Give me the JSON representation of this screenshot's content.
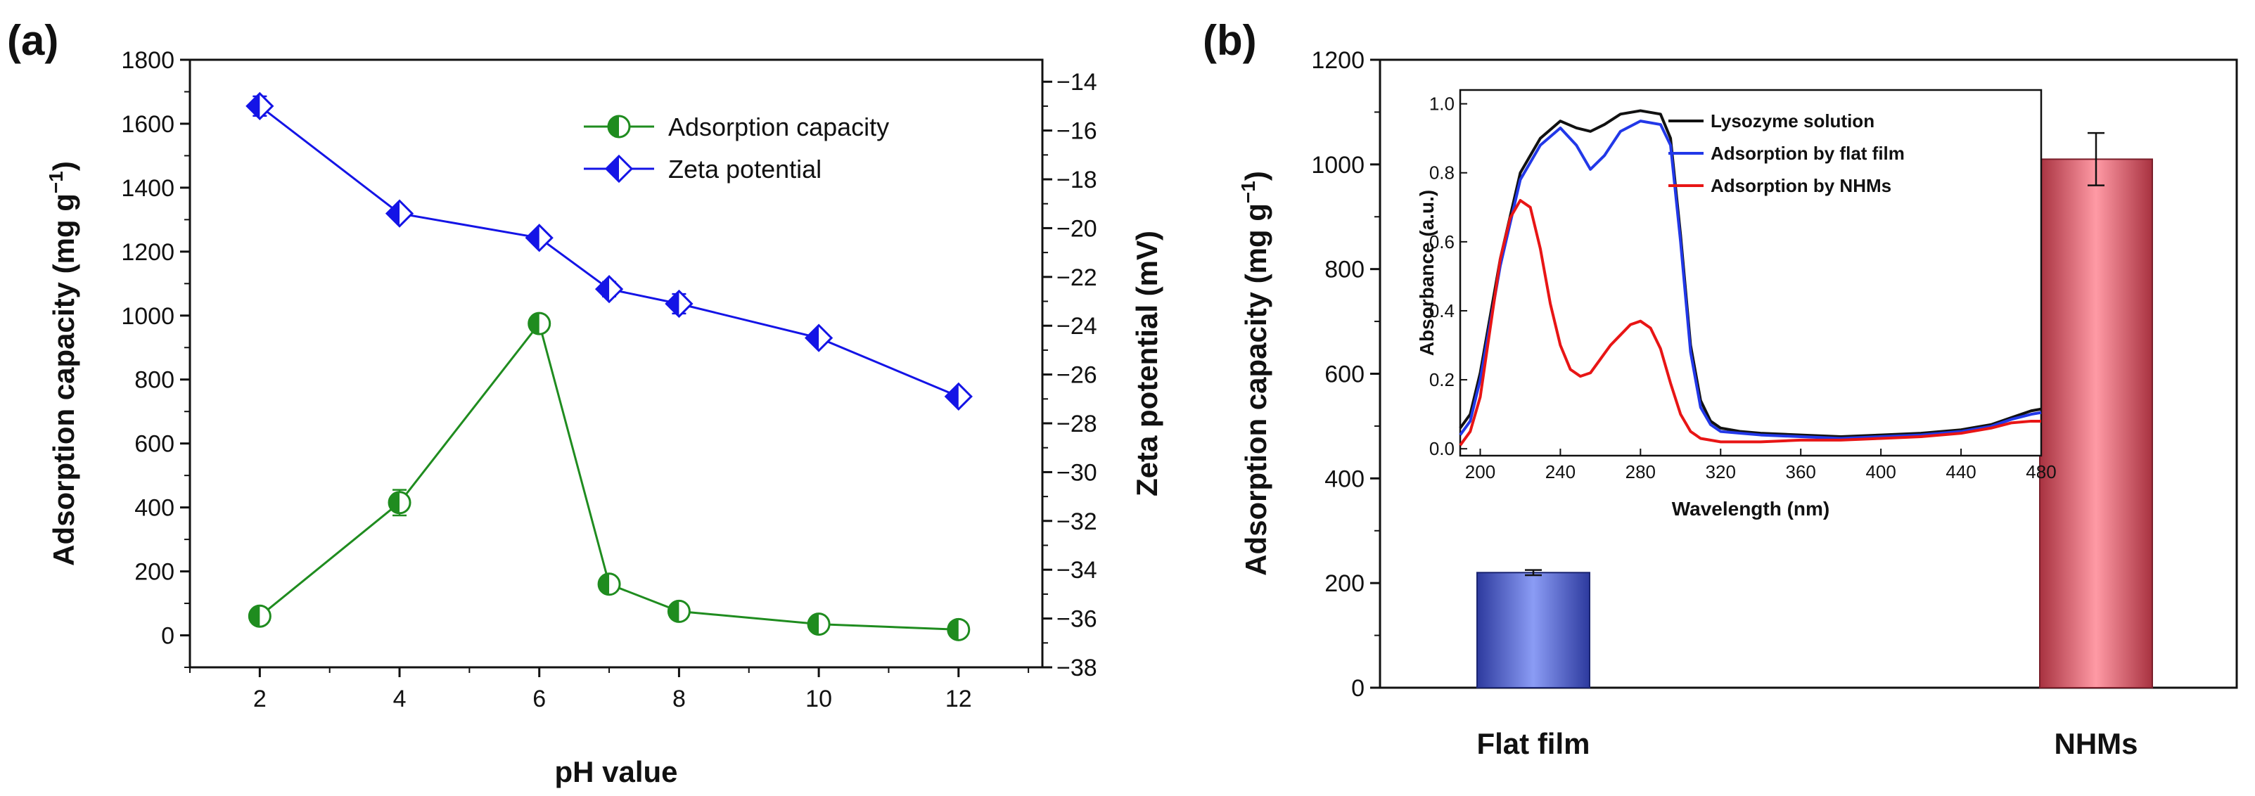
{
  "chart_data": [
    {
      "panel": "(a)",
      "type": "line",
      "xlabel": "pH value",
      "ylabel": "Adsorption capacity (mg g",
      "ylabel_sup": "−1",
      "ylabel_close": ")",
      "y2label": "Zeta potential (mV)",
      "xticks": [
        "2",
        "4",
        "6",
        "8",
        "10",
        "12"
      ],
      "xlim": [
        1,
        13.2
      ],
      "ylim": [
        -100,
        1800
      ],
      "y_ticks": [
        "0",
        "200",
        "400",
        "600",
        "800",
        "1000",
        "1200",
        "1400",
        "1600",
        "1800"
      ],
      "y2lim": [
        -38,
        -13.1
      ],
      "y2_ticks": [
        "-14",
        "-16",
        "-18",
        "-20",
        "-22",
        "-24",
        "-26",
        "-28",
        "-30",
        "-32",
        "-34",
        "-36",
        "-38"
      ],
      "legend_position": "top-right",
      "series": [
        {
          "name": "Adsorption capacity",
          "color": "#1f8c1f",
          "axis": "left",
          "marker": "half-circle",
          "x": [
            2,
            4,
            6,
            7,
            8,
            10,
            12
          ],
          "values": [
            60,
            415,
            975,
            160,
            75,
            35,
            18
          ],
          "errors": [
            15,
            40,
            15,
            15,
            15,
            10,
            10
          ]
        },
        {
          "name": "Zeta potential",
          "color": "#1414e6",
          "axis": "right",
          "marker": "half-diamond",
          "x": [
            2,
            4,
            6,
            7,
            8,
            10,
            12
          ],
          "values": [
            -15.0,
            -19.4,
            -20.4,
            -22.5,
            -23.1,
            -24.5,
            -26.9
          ],
          "errors": [
            0.4,
            0.2,
            0.2,
            0.3,
            0.4,
            0.2,
            0.2
          ]
        }
      ]
    },
    {
      "panel": "(b)",
      "type": "bar",
      "ylabel": "Adsorption capacity (mg g",
      "ylabel_sup": "−1",
      "ylabel_close": ")",
      "ylim": [
        0,
        1200
      ],
      "y_ticks": [
        "0",
        "200",
        "400",
        "600",
        "800",
        "1000",
        "1200"
      ],
      "categories": [
        "Flat film",
        "NHMs"
      ],
      "values": [
        220,
        1010
      ],
      "errors": [
        5,
        50
      ],
      "colors": [
        "#5063d6",
        "#e0707b"
      ]
    },
    {
      "panel": "(b) inset",
      "type": "line",
      "xlabel": "Wavelength (nm)",
      "ylabel": "Absorbance (a.u.)",
      "xlim": [
        190,
        480
      ],
      "ylim": [
        -0.02,
        1.04
      ],
      "xticks": [
        "200",
        "240",
        "280",
        "320",
        "360",
        "400",
        "440",
        "480"
      ],
      "y_ticks": [
        "0.0",
        "0.2",
        "0.4",
        "0.6",
        "0.8",
        "1.0"
      ],
      "legend_position": "top-right",
      "series": [
        {
          "name": "Lysozyme solution",
          "color": "#111111",
          "x": [
            190,
            195,
            200,
            210,
            220,
            230,
            240,
            248,
            255,
            262,
            270,
            280,
            290,
            295,
            300,
            305,
            310,
            315,
            320,
            330,
            340,
            360,
            380,
            400,
            420,
            440,
            455,
            465,
            475,
            480
          ],
          "values": [
            0.06,
            0.1,
            0.22,
            0.55,
            0.8,
            0.9,
            0.95,
            0.93,
            0.92,
            0.94,
            0.97,
            0.98,
            0.97,
            0.9,
            0.62,
            0.3,
            0.14,
            0.08,
            0.06,
            0.05,
            0.045,
            0.04,
            0.035,
            0.04,
            0.045,
            0.055,
            0.07,
            0.09,
            0.11,
            0.115
          ]
        },
        {
          "name": "Adsorption by flat film",
          "color": "#2238e8",
          "x": [
            190,
            195,
            200,
            210,
            220,
            230,
            240,
            248,
            255,
            262,
            270,
            280,
            290,
            295,
            300,
            305,
            310,
            315,
            320,
            330,
            340,
            360,
            380,
            400,
            420,
            440,
            455,
            465,
            475,
            480
          ],
          "values": [
            0.04,
            0.08,
            0.2,
            0.53,
            0.78,
            0.88,
            0.93,
            0.88,
            0.81,
            0.85,
            0.92,
            0.95,
            0.94,
            0.88,
            0.6,
            0.28,
            0.12,
            0.07,
            0.05,
            0.045,
            0.04,
            0.035,
            0.03,
            0.035,
            0.04,
            0.05,
            0.065,
            0.085,
            0.1,
            0.105
          ]
        },
        {
          "name": "Adsorption by NHMs",
          "color": "#e81515",
          "x": [
            190,
            195,
            200,
            210,
            215,
            220,
            225,
            230,
            235,
            240,
            245,
            250,
            255,
            260,
            265,
            270,
            275,
            280,
            285,
            290,
            295,
            300,
            305,
            310,
            320,
            340,
            360,
            380,
            400,
            420,
            440,
            455,
            465,
            475,
            480
          ],
          "values": [
            0.01,
            0.05,
            0.15,
            0.55,
            0.67,
            0.72,
            0.7,
            0.58,
            0.42,
            0.3,
            0.23,
            0.21,
            0.22,
            0.26,
            0.3,
            0.33,
            0.36,
            0.37,
            0.35,
            0.29,
            0.19,
            0.1,
            0.05,
            0.03,
            0.02,
            0.02,
            0.025,
            0.025,
            0.03,
            0.035,
            0.045,
            0.06,
            0.075,
            0.08,
            0.08
          ]
        }
      ]
    }
  ]
}
